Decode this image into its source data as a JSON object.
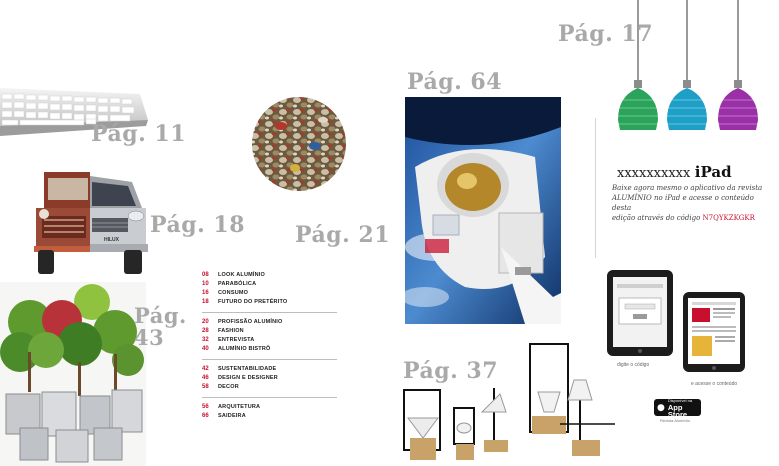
{
  "page_labels": {
    "pag11": "Pág. 11",
    "pag18": "Pág. 18",
    "pag21": "Pág. 21",
    "pag43_line1": "Pág.",
    "pag43_line2": "43",
    "pag64": "Pág. 64",
    "pag37": "Pág. 37",
    "pag17": "Pág. 17"
  },
  "toc": {
    "groups": [
      [
        {
          "num": "08",
          "label": "LOOK ALUMÍNIO"
        },
        {
          "num": "10",
          "label": "PARABÓLICA"
        },
        {
          "num": "16",
          "label": "CONSUMO"
        },
        {
          "num": "18",
          "label": "FUTURO DO PRETÉRITO"
        }
      ],
      [
        {
          "num": "20",
          "label": "PROFISSÃO ALUMÍNIO"
        },
        {
          "num": "28",
          "label": "FASHION"
        },
        {
          "num": "32",
          "label": "ENTREVISTA"
        },
        {
          "num": "40",
          "label": "ALUMÍNIO BISTRÔ"
        }
      ],
      [
        {
          "num": "42",
          "label": "SUSTENTABILIDADE"
        },
        {
          "num": "46",
          "label": "DESIGN E DESIGNER"
        },
        {
          "num": "58",
          "label": "DECOR"
        }
      ],
      [
        {
          "num": "56",
          "label": "ARQUITETURA"
        },
        {
          "num": "66",
          "label": "SAIDEIRA"
        }
      ]
    ]
  },
  "ipad_promo": {
    "title_x": "xxxxxxxxxx",
    "title_ipad": "iPad",
    "body_lines": [
      "Baixe agora mesmo o aplicativo da revista",
      "ALUMÍNIO no iPad e acesse o conteúdo desta",
      "edição através do código"
    ],
    "code": "N7QYKZKGKR",
    "caption_left": "digite o código",
    "caption_right": "e acesse o conteúdo",
    "appstore_small": "Disponível na",
    "appstore_big": "App Store",
    "appstore_note": "Revista Alumínio"
  },
  "colors": {
    "accent_red": "#c8102e",
    "page_label_gray": "#a9a9a9"
  },
  "truck_badge": "HILUX"
}
